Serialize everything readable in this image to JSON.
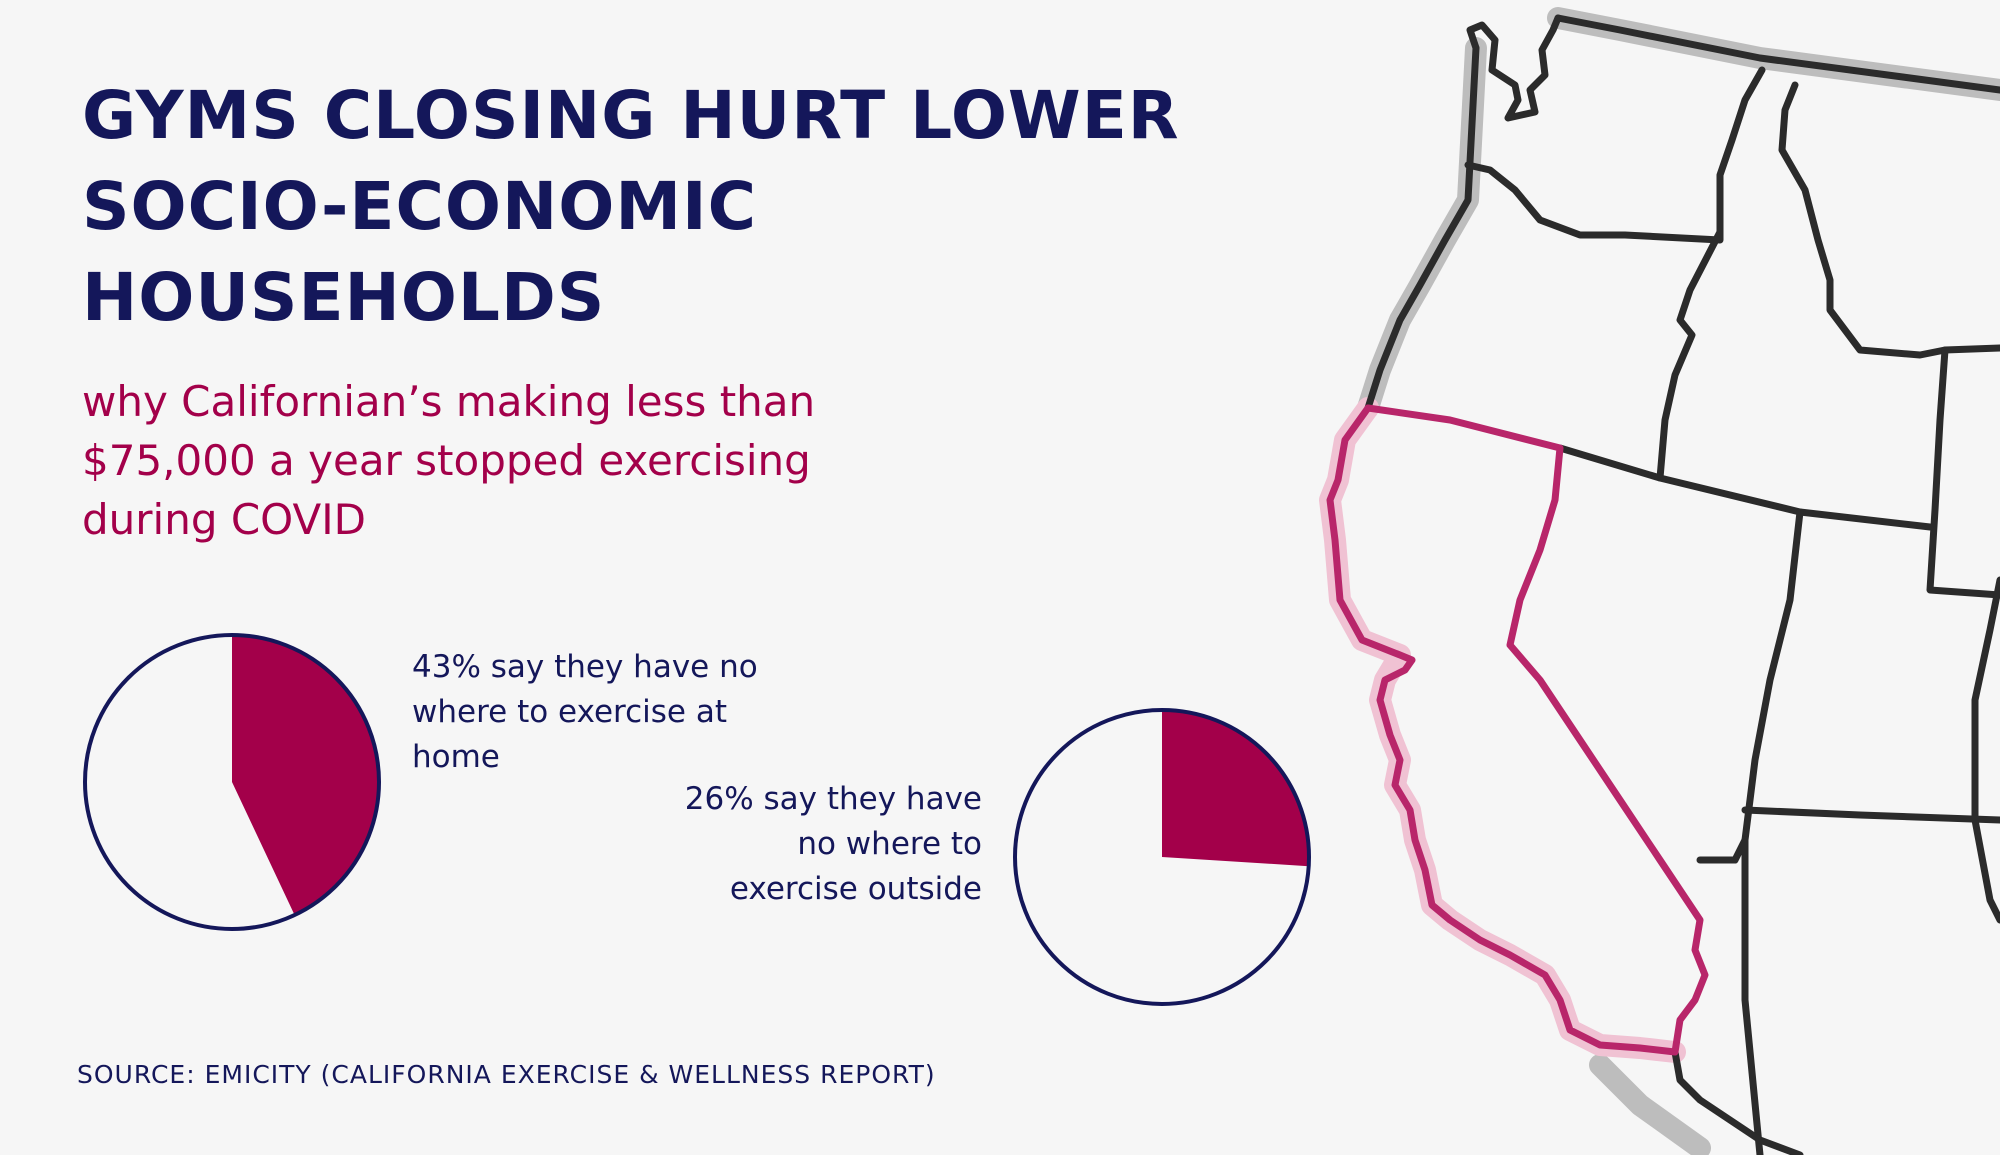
{
  "title": "GYMS CLOSING HURT LOWER\nSOCIO-ECONOMIC\nHOUSEHOLDS",
  "subtitle": "why Californian’s making less than\n$75,000 a year stopped exercising\nduring COVID",
  "source": "SOURCE: EMICITY (CALIFORNIA EXERCISE & WELLNESS REPORT)",
  "colors": {
    "title": "#14175a",
    "accent": "#a3004a",
    "pie_outline": "#14175a",
    "california": "#b8266a",
    "state_lines": "#2b2b2b"
  },
  "chart_data": [
    {
      "type": "pie",
      "values": [
        43,
        57
      ],
      "label": "43% say they have no\nwhere to exercise at\nhome"
    },
    {
      "type": "pie",
      "values": [
        26,
        74
      ],
      "label": "26% say they have\nno where to\nexercise outside"
    }
  ]
}
